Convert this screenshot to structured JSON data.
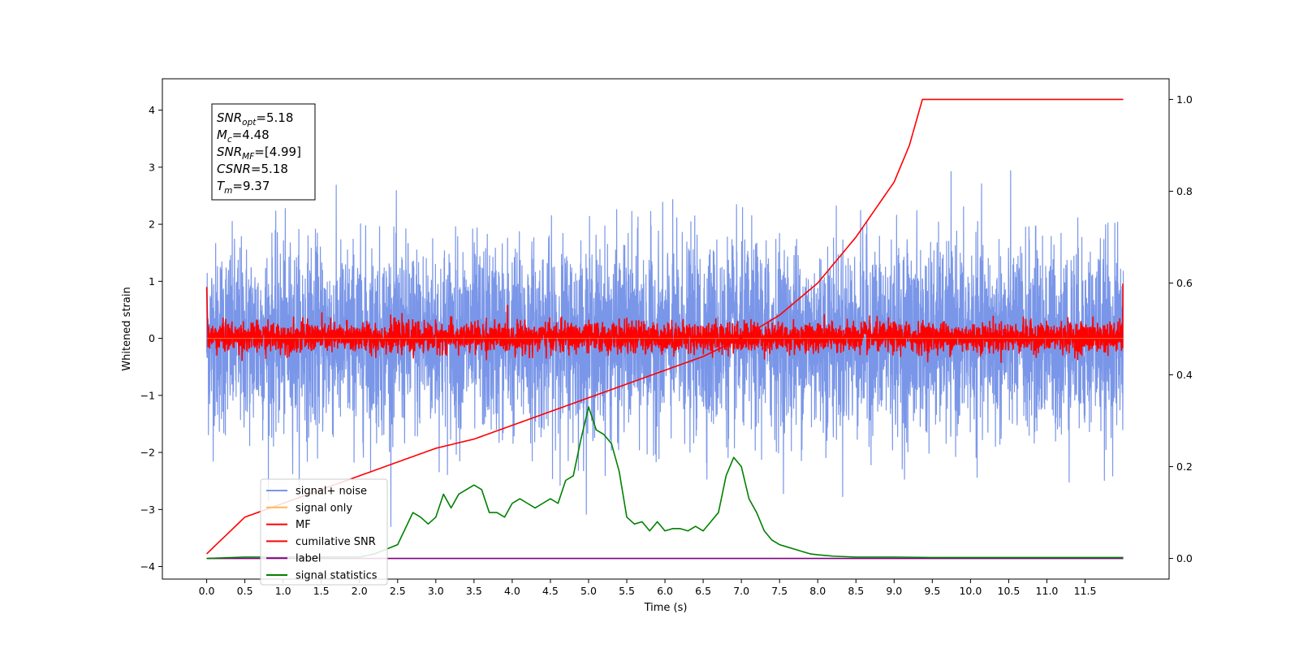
{
  "chart_data": {
    "type": "line",
    "title": "",
    "xlabel": "Time (s)",
    "ylabel": "Whitened strain",
    "y2label": "",
    "xlim": [
      -0.58,
      12.6
    ],
    "ylim": [
      -4.22,
      4.55
    ],
    "y2lim": [
      -0.045,
      1.045
    ],
    "x_ticks": [
      "0.0",
      "0.5",
      "1.0",
      "1.5",
      "2.0",
      "2.5",
      "3.0",
      "3.5",
      "4.0",
      "4.5",
      "5.0",
      "5.5",
      "6.0",
      "6.5",
      "7.0",
      "7.5",
      "8.0",
      "8.5",
      "9.0",
      "9.5",
      "10.0",
      "10.5",
      "11.0",
      "11.5"
    ],
    "y_ticks": [
      "−4",
      "−3",
      "−2",
      "−1",
      "0",
      "1",
      "2",
      "3",
      "4"
    ],
    "y2_ticks": [
      "0.0",
      "0.2",
      "0.4",
      "0.6",
      "0.8",
      "1.0"
    ],
    "duration": 12.0,
    "merger_time": 9.37,
    "colors": {
      "signal_noise": "#7a96e8",
      "signal_only": "#ffb84d",
      "mf": "#ff0000",
      "cumulative_snr": "#ff0000",
      "label": "#800080",
      "signal_statistics": "#008000"
    },
    "series": [
      {
        "name": "signal+ noise",
        "axis": "left",
        "style": "noise",
        "amplitude_std": 0.82
      },
      {
        "name": "signal only",
        "axis": "left",
        "style": "flat",
        "values": [
          0,
          0
        ]
      },
      {
        "name": "MF",
        "axis": "left",
        "style": "noise",
        "amplitude_std": 0.13
      },
      {
        "name": "cumilative SNR",
        "axis": "right",
        "x": [
          0.0,
          0.5,
          1.0,
          1.5,
          2.0,
          2.5,
          3.0,
          3.5,
          4.0,
          4.5,
          5.0,
          5.5,
          6.0,
          6.5,
          7.0,
          7.5,
          8.0,
          8.5,
          9.0,
          9.2,
          9.37,
          12.0
        ],
        "values": [
          0.01,
          0.09,
          0.12,
          0.15,
          0.18,
          0.21,
          0.24,
          0.26,
          0.29,
          0.32,
          0.35,
          0.38,
          0.41,
          0.44,
          0.48,
          0.53,
          0.6,
          0.7,
          0.82,
          0.9,
          1.0,
          1.0
        ]
      },
      {
        "name": "label",
        "axis": "right",
        "x": [
          0,
          12
        ],
        "values": [
          0.0,
          0.0
        ]
      },
      {
        "name": "signal statistics",
        "axis": "right",
        "x": [
          0.0,
          0.5,
          1.0,
          1.5,
          2.0,
          2.2,
          2.5,
          2.7,
          2.8,
          2.9,
          3.0,
          3.1,
          3.2,
          3.3,
          3.4,
          3.5,
          3.6,
          3.7,
          3.8,
          3.9,
          4.0,
          4.1,
          4.2,
          4.3,
          4.4,
          4.5,
          4.6,
          4.7,
          4.8,
          4.9,
          5.0,
          5.1,
          5.2,
          5.3,
          5.4,
          5.5,
          5.6,
          5.7,
          5.8,
          5.9,
          6.0,
          6.1,
          6.2,
          6.3,
          6.4,
          6.5,
          6.6,
          6.7,
          6.8,
          6.9,
          7.0,
          7.1,
          7.2,
          7.3,
          7.4,
          7.5,
          7.6,
          7.7,
          7.8,
          7.9,
          8.0,
          8.2,
          8.5,
          9.0,
          9.5,
          10.0,
          11.0,
          12.0
        ],
        "values": [
          0.0,
          0.003,
          0.003,
          0.003,
          0.003,
          0.01,
          0.03,
          0.1,
          0.09,
          0.075,
          0.09,
          0.14,
          0.11,
          0.14,
          0.15,
          0.16,
          0.15,
          0.1,
          0.1,
          0.09,
          0.12,
          0.13,
          0.12,
          0.11,
          0.12,
          0.13,
          0.12,
          0.17,
          0.18,
          0.26,
          0.33,
          0.28,
          0.27,
          0.25,
          0.19,
          0.09,
          0.075,
          0.08,
          0.06,
          0.08,
          0.06,
          0.065,
          0.065,
          0.06,
          0.07,
          0.06,
          0.08,
          0.1,
          0.18,
          0.22,
          0.2,
          0.13,
          0.1,
          0.06,
          0.04,
          0.03,
          0.025,
          0.02,
          0.015,
          0.01,
          0.008,
          0.005,
          0.003,
          0.003,
          0.002,
          0.002,
          0.002,
          0.002
        ]
      }
    ],
    "legend_position": "lower-left",
    "info_box": {
      "lines": [
        {
          "var": "SNR",
          "sub": "opt",
          "value": "=5.18"
        },
        {
          "var": "M",
          "sub": "c",
          "value": "=4.48"
        },
        {
          "var": "SNR",
          "sub": "MF",
          "value": "=[4.99]"
        },
        {
          "var": "CSNR",
          "sub": "",
          "value": "=5.18"
        },
        {
          "var": "T",
          "sub": "m",
          "value": "=9.37"
        }
      ]
    }
  }
}
